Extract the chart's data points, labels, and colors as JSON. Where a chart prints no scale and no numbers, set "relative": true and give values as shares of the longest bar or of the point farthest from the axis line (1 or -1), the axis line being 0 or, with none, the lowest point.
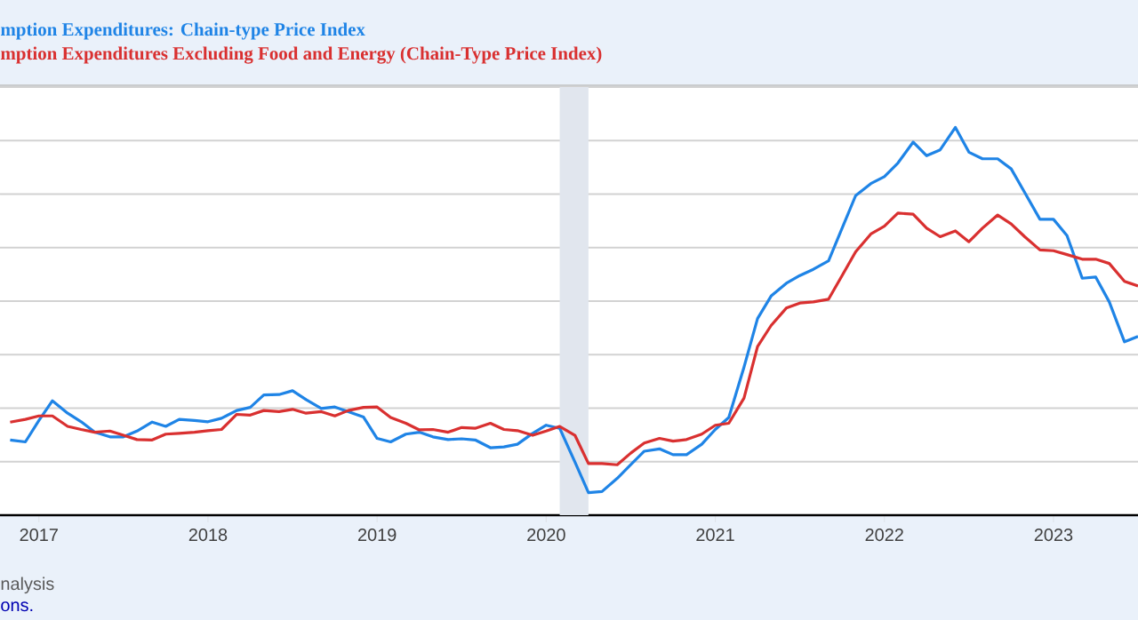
{
  "chart_data": {
    "type": "line",
    "relative": true,
    "legend": "top",
    "grid": "y",
    "x": [
      "2016-11",
      "2016-12",
      "2017-01",
      "2017-02",
      "2017-03",
      "2017-04",
      "2017-05",
      "2017-06",
      "2017-07",
      "2017-08",
      "2017-09",
      "2017-10",
      "2017-11",
      "2017-12",
      "2018-01",
      "2018-02",
      "2018-03",
      "2018-04",
      "2018-05",
      "2018-06",
      "2018-07",
      "2018-08",
      "2018-09",
      "2018-10",
      "2018-11",
      "2018-12",
      "2019-01",
      "2019-02",
      "2019-03",
      "2019-04",
      "2019-05",
      "2019-06",
      "2019-07",
      "2019-08",
      "2019-09",
      "2019-10",
      "2019-11",
      "2019-12",
      "2020-01",
      "2020-02",
      "2020-03",
      "2020-04",
      "2020-05",
      "2020-06",
      "2020-07",
      "2020-08",
      "2020-09",
      "2020-10",
      "2020-11",
      "2020-12",
      "2021-01",
      "2021-02",
      "2021-03",
      "2021-04",
      "2021-05",
      "2021-06",
      "2021-07",
      "2021-08",
      "2021-09",
      "2021-10",
      "2021-11",
      "2021-12",
      "2022-01",
      "2022-02",
      "2022-03",
      "2022-04",
      "2022-05",
      "2022-06",
      "2022-07",
      "2022-08",
      "2022-09",
      "2022-10",
      "2022-11",
      "2022-12",
      "2023-01",
      "2023-02",
      "2023-03",
      "2023-04",
      "2023-05",
      "2023-06",
      "2023-07"
    ],
    "xlim": [
      "2016-10-10",
      "2023-07-01"
    ],
    "xticks": [
      "2017",
      "2018",
      "2019",
      "2020",
      "2021",
      "2022",
      "2023"
    ],
    "series": [
      {
        "name": "mption Expenditures: Chain-type Price Index",
        "color": "#1f84e6",
        "values": [
          0.194,
          0.189,
          0.244,
          0.295,
          0.263,
          0.241,
          0.214,
          0.202,
          0.202,
          0.217,
          0.24,
          0.229,
          0.247,
          0.244,
          0.241,
          0.25,
          0.27,
          0.278,
          0.31,
          0.311,
          0.321,
          0.298,
          0.275,
          0.279,
          0.267,
          0.253,
          0.198,
          0.189,
          0.209,
          0.214,
          0.202,
          0.195,
          0.197,
          0.194,
          0.174,
          0.176,
          0.183,
          0.211,
          0.232,
          0.224,
          0.137,
          0.058,
          0.061,
          0.095,
          0.13,
          0.165,
          0.171,
          0.156,
          0.156,
          0.183,
          0.221,
          0.252,
          0.382,
          0.507,
          0.565,
          0.598,
          0.618,
          0.634,
          0.656,
          0.74,
          0.824,
          0.855,
          0.873,
          0.908,
          0.962,
          0.927,
          0.942,
          1.0,
          0.936,
          0.919,
          0.919,
          0.893,
          0.832,
          0.763,
          0.763,
          0.721,
          0.611,
          0.614,
          0.55,
          0.447,
          0.461
        ]
      },
      {
        "name": "mption Expenditures Excluding Food and Energy (Chain-Type Price Index)",
        "color": "#d93030",
        "values": [
          0.24,
          0.247,
          0.256,
          0.256,
          0.229,
          0.221,
          0.214,
          0.217,
          0.206,
          0.195,
          0.194,
          0.209,
          0.211,
          0.214,
          0.218,
          0.221,
          0.26,
          0.258,
          0.27,
          0.267,
          0.273,
          0.263,
          0.267,
          0.256,
          0.27,
          0.278,
          0.279,
          0.252,
          0.237,
          0.22,
          0.221,
          0.214,
          0.226,
          0.224,
          0.237,
          0.221,
          0.218,
          0.206,
          0.217,
          0.229,
          0.206,
          0.133,
          0.133,
          0.13,
          0.16,
          0.186,
          0.198,
          0.191,
          0.195,
          0.209,
          0.232,
          0.237,
          0.302,
          0.435,
          0.489,
          0.534,
          0.547,
          0.55,
          0.557,
          0.618,
          0.679,
          0.725,
          0.745,
          0.779,
          0.776,
          0.74,
          0.718,
          0.733,
          0.705,
          0.74,
          0.774,
          0.751,
          0.718,
          0.684,
          0.682,
          0.672,
          0.66,
          0.66,
          0.649,
          0.603,
          0.591
        ]
      }
    ],
    "bands": [
      {
        "axis": "x",
        "from": "2020-02",
        "to": "2020-04",
        "color": "#e1e6ee"
      }
    ],
    "annotations": [
      "nalysis",
      "ons."
    ]
  }
}
